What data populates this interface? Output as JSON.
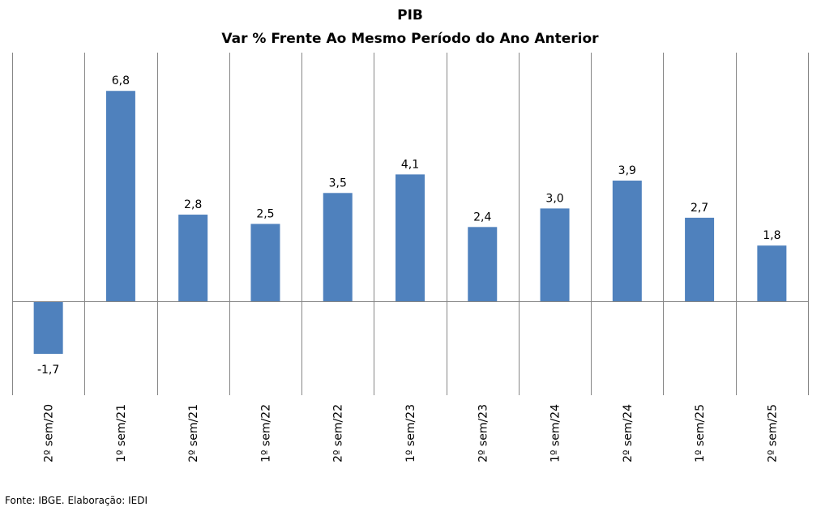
{
  "chart_data": {
    "type": "bar",
    "title": "PIB",
    "subtitle": "Var % Frente Ao Mesmo Período do Ano Anterior",
    "categories": [
      "2º sem/20",
      "1º sem/21",
      "2º sem/21",
      "1º sem/22",
      "2º sem/22",
      "1º sem/23",
      "2º sem/23",
      "1º sem/24",
      "2º sem/24",
      "1º sem/25",
      "2º sem/25"
    ],
    "values": [
      -1.7,
      6.8,
      2.8,
      2.5,
      3.5,
      4.1,
      2.4,
      3.0,
      3.9,
      2.7,
      1.8
    ],
    "data_labels": [
      "-1,7",
      "6,8",
      "2,8",
      "2,5",
      "3,5",
      "4,1",
      "2,4",
      "3,0",
      "3,9",
      "2,7",
      "1,8"
    ],
    "xlabel": "",
    "ylabel": "",
    "ylim": [
      -3.05,
      8.05
    ],
    "grid": "vertical category separators",
    "bar_color": "#4F81BD"
  },
  "footer": "Fonte: IBGE. Elaboração: IEDI"
}
